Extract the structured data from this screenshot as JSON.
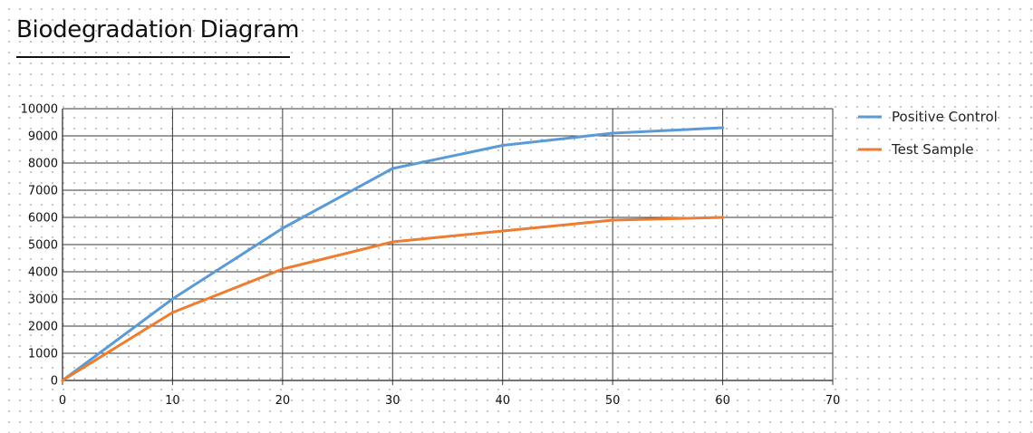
{
  "page": {
    "title": "Biodegradation Diagram"
  },
  "chart_data": {
    "type": "line",
    "title": "Biodegradation Diagram",
    "xlabel": "",
    "ylabel": "",
    "xlim": [
      0,
      70
    ],
    "ylim": [
      0,
      10000
    ],
    "xticks": [
      0,
      10,
      20,
      30,
      40,
      50,
      60,
      70
    ],
    "yticks": [
      0,
      1000,
      2000,
      3000,
      4000,
      5000,
      6000,
      7000,
      8000,
      9000,
      10000
    ],
    "grid": true,
    "legend_position": "right",
    "series": [
      {
        "name": "Positive Control",
        "color": "#5b9bd5",
        "x": [
          0,
          10,
          20,
          30,
          40,
          50,
          60
        ],
        "y": [
          0,
          3000,
          5600,
          7800,
          8650,
          9100,
          9300
        ]
      },
      {
        "name": "Test Sample",
        "color": "#ed7d31",
        "x": [
          0,
          10,
          20,
          30,
          40,
          50,
          60
        ],
        "y": [
          0,
          2500,
          4100,
          5100,
          5500,
          5900,
          6000
        ]
      }
    ]
  }
}
